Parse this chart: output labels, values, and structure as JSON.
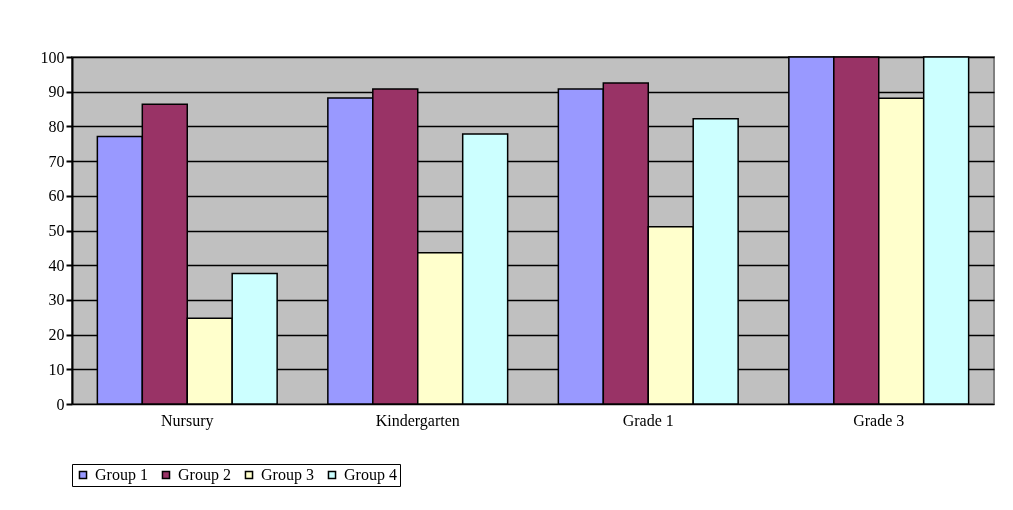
{
  "chart_data": {
    "type": "bar",
    "categories": [
      "Nursury",
      "Kindergarten",
      "Grade 1",
      "Grade 3"
    ],
    "series": [
      {
        "name": "Group 1",
        "color": "#9999ff",
        "values": [
          77.1,
          88.2,
          90.8,
          100
        ]
      },
      {
        "name": "Group 2",
        "color": "#993366",
        "values": [
          86.4,
          90.8,
          92.5,
          100
        ]
      },
      {
        "name": "Group 3",
        "color": "#ffffcc",
        "values": [
          24.7,
          43.6,
          51.1,
          88.1
        ]
      },
      {
        "name": "Group 4",
        "color": "#ccffff",
        "values": [
          37.6,
          77.8,
          82.2,
          100
        ]
      }
    ],
    "ylim": [
      0,
      100
    ],
    "yticks": [
      0,
      10,
      20,
      30,
      40,
      50,
      60,
      70,
      80,
      90,
      100
    ],
    "grid": "y",
    "legend": "bottom"
  }
}
